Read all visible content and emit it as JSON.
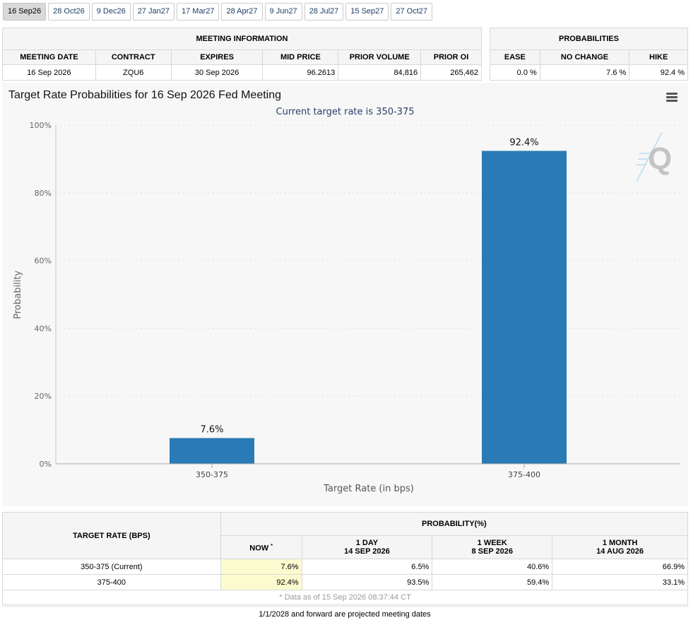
{
  "tabs": [
    "16 Sep26",
    "28 Oct26",
    "9 Dec26",
    "27 Jan27",
    "17 Mar27",
    "28 Apr27",
    "9 Jun27",
    "28 Jul27",
    "15 Sep27",
    "27 Oct27"
  ],
  "active_tab": 0,
  "meeting_info": {
    "title": "MEETING INFORMATION",
    "columns": [
      "MEETING DATE",
      "CONTRACT",
      "EXPIRES",
      "MID PRICE",
      "PRIOR VOLUME",
      "PRIOR OI"
    ],
    "row": [
      "16 Sep 2026",
      "ZQU6",
      "30 Sep 2026",
      "96.2613",
      "84,816",
      "265,462"
    ]
  },
  "probabilities": {
    "title": "PROBABILITIES",
    "columns": [
      "EASE",
      "NO CHANGE",
      "HIKE"
    ],
    "row": [
      "0.0 %",
      "7.6 %",
      "92.4 %"
    ]
  },
  "chart_data": {
    "type": "bar",
    "title": "Target Rate Probabilities for 16 Sep 2026 Fed Meeting",
    "subtitle": "Current target rate is 350-375",
    "xlabel": "Target Rate (in bps)",
    "ylabel": "Probability",
    "categories": [
      "350-375",
      "375-400"
    ],
    "values": [
      7.6,
      92.4
    ],
    "data_labels": [
      "7.6%",
      "92.4%"
    ],
    "ylim": [
      0,
      100
    ],
    "yticks": [
      0,
      20,
      40,
      60,
      80,
      100
    ],
    "ytick_labels": [
      "0%",
      "20%",
      "40%",
      "60%",
      "80%",
      "100%"
    ],
    "bar_color": "#2a7ab5",
    "grid": true,
    "legend": "none"
  },
  "watermark_icon": "q-logo-icon",
  "target_table": {
    "rate_header": "TARGET RATE (BPS)",
    "prob_header": "PROBABILITY(%)",
    "now_label": "NOW",
    "now_mark": "*",
    "periods": [
      {
        "l1": "1 DAY",
        "l2": "14 SEP 2026"
      },
      {
        "l1": "1 WEEK",
        "l2": "8 SEP 2026"
      },
      {
        "l1": "1 MONTH",
        "l2": "14 AUG 2026"
      }
    ],
    "rows": [
      {
        "rate": "350-375 (Current)",
        "now": "7.6%",
        "vals": [
          "6.5%",
          "40.6%",
          "66.9%"
        ]
      },
      {
        "rate": "375-400",
        "now": "92.4%",
        "vals": [
          "93.5%",
          "59.4%",
          "33.1%"
        ]
      }
    ],
    "note": "* Data as of 15 Sep 2026 08:37:44 CT"
  },
  "footer_note": "1/1/2028 and forward are projected meeting dates"
}
